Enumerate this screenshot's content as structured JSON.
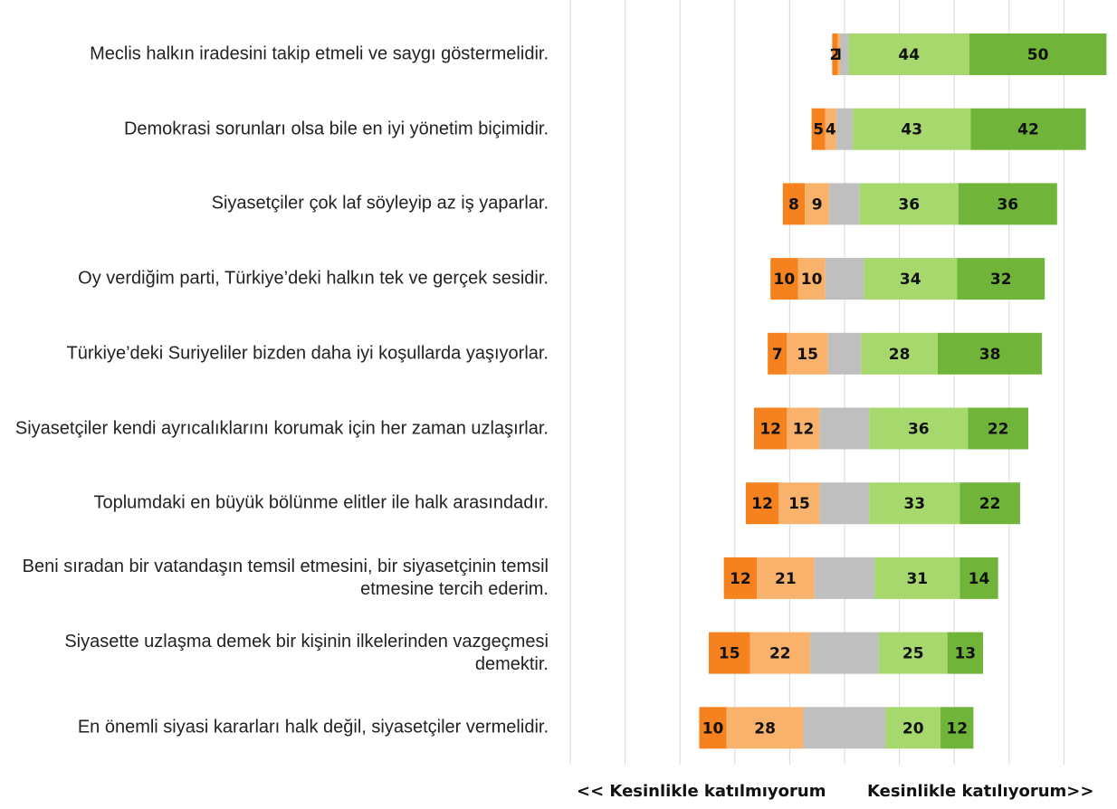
{
  "chart_data": {
    "type": "diverging_bar",
    "categories": [
      "Meclis halkın iradesini takip etmeli ve saygı göstermelidir.",
      "Demokrasi sorunları olsa bile en iyi yönetim biçimidir.",
      "Siyasetçiler çok laf söyleyip az iş yaparlar.",
      "Oy verdiğim parti, Türkiye’deki halkın tek ve gerçek sesidir.",
      "Türkiye’deki Suriyeliler bizden daha iyi koşullarda yaşıyorlar.",
      "Siyasetçiler kendi ayrıcalıklarını korumak için her zaman uzlaşırlar.",
      "Toplumdaki en büyük bölünme elitler ile halk arasındadır.",
      "Beni sıradan bir vatandaşın temsil etmesini, bir siyasetçinin temsil etmesine tercih ederim.",
      "Siyasette uzlaşma demek bir kişinin ilkelerinden vazgeçmesi demektir.",
      "En önemli siyasi kararları halk değil, siyasetçiler vermelidir."
    ],
    "series": [
      {
        "color": "#f5821f",
        "values": [
          2,
          5,
          8,
          10,
          7,
          12,
          12,
          12,
          15,
          10
        ],
        "labeled": true
      },
      {
        "color": "#f9b26b",
        "values": [
          1,
          4,
          9,
          10,
          15,
          12,
          15,
          21,
          22,
          28
        ],
        "labeled": true
      },
      {
        "color": "#bfbfbf",
        "values": [
          3,
          6,
          11,
          14,
          12,
          18,
          18,
          22,
          25,
          30
        ],
        "labeled": false,
        "neutral": true
      },
      {
        "color": "#a6d86e",
        "values": [
          44,
          43,
          36,
          34,
          28,
          36,
          33,
          31,
          25,
          20
        ],
        "labeled": true
      },
      {
        "color": "#70b53a",
        "values": [
          50,
          42,
          36,
          32,
          38,
          22,
          22,
          14,
          13,
          12
        ],
        "labeled": true
      }
    ],
    "xlim": [
      -100,
      100
    ],
    "grid": true,
    "left_label": "<< Kesinlikle katılmıyorum",
    "right_label": "Kesinlikle katılıyorum>>"
  }
}
